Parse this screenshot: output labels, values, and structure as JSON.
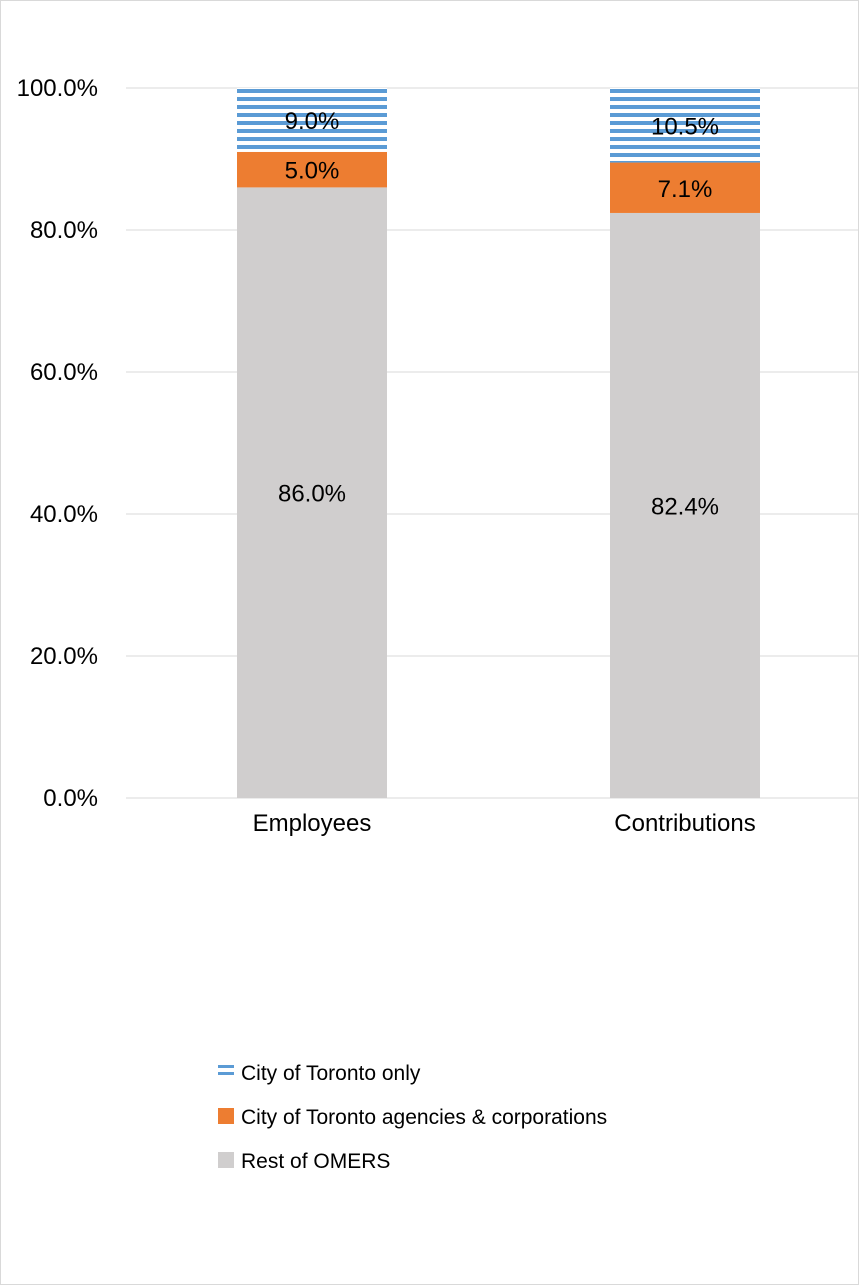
{
  "chart_data": {
    "type": "bar",
    "stacked": true,
    "categories": [
      "Employees",
      "Contributions"
    ],
    "series": [
      {
        "name": "Rest of OMERS",
        "values": [
          86.0,
          82.4
        ],
        "labels": [
          "86.0%",
          "82.4%"
        ],
        "color": "#d0cece",
        "pattern": "solid"
      },
      {
        "name": "City of Toronto agencies & corporations",
        "values": [
          5.0,
          7.1
        ],
        "labels": [
          "5.0%",
          "7.1%"
        ],
        "color": "#ed7d31",
        "pattern": "solid"
      },
      {
        "name": "City of Toronto only",
        "values": [
          9.0,
          10.5
        ],
        "labels": [
          "9.0%",
          "10.5%"
        ],
        "color": "#5b9bd5",
        "pattern": "horizontal-stripes"
      }
    ],
    "yticks": [
      "0.0%",
      "20.0%",
      "40.0%",
      "60.0%",
      "80.0%",
      "100.0%"
    ],
    "ylim": [
      0,
      100
    ],
    "grid": true,
    "legend_position": "bottom",
    "legend_order": [
      "City of Toronto only",
      "City of Toronto agencies & corporations",
      "Rest of OMERS"
    ]
  }
}
